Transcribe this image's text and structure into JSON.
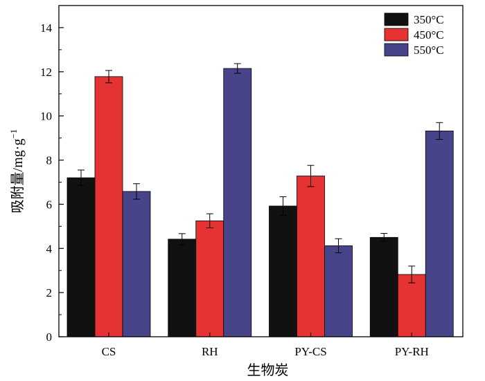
{
  "chart_data": {
    "type": "bar",
    "title": "",
    "xlabel": "生物炭",
    "ylabel": "吸附量/mg·g",
    "ylabel_superscript": "−1",
    "categories": [
      "CS",
      "RH",
      "PY-CS",
      "PY-RH"
    ],
    "series": [
      {
        "name": "350°C",
        "color": "#111111",
        "values": [
          7.2,
          4.42,
          5.92,
          4.5
        ],
        "errors": [
          0.35,
          0.25,
          0.42,
          0.18
        ]
      },
      {
        "name": "450°C",
        "color": "#e53232",
        "values": [
          11.78,
          5.25,
          7.28,
          2.82
        ],
        "errors": [
          0.28,
          0.32,
          0.48,
          0.38
        ]
      },
      {
        "name": "550°C",
        "color": "#474489",
        "values": [
          6.58,
          12.15,
          4.12,
          9.32
        ],
        "errors": [
          0.35,
          0.22,
          0.32,
          0.38
        ]
      }
    ],
    "ylim": [
      0,
      15
    ],
    "yticks": [
      "0",
      "2",
      "4",
      "6",
      "8",
      "10",
      "12",
      "14"
    ],
    "grid": false,
    "legend_position": "top-right",
    "error_bars": true
  }
}
